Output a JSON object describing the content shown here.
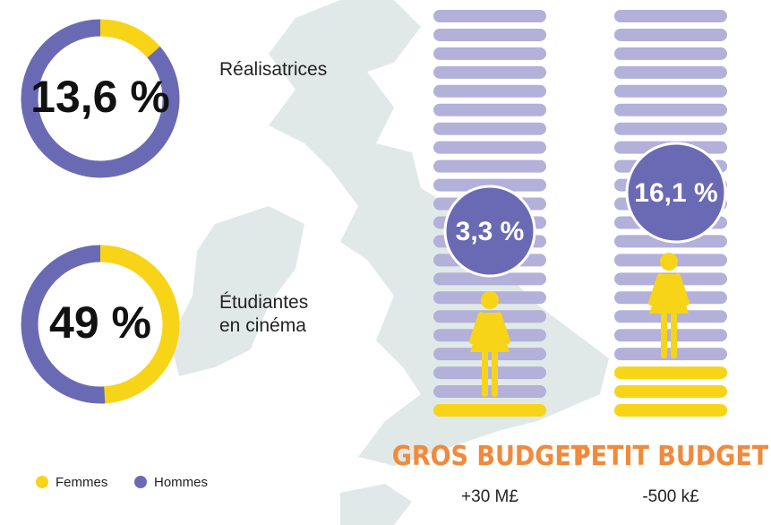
{
  "chart_data": [
    {
      "type": "donut",
      "label": "Réalisatrices",
      "categories": [
        "Femmes",
        "Hommes"
      ],
      "values": [
        13.6,
        86.4
      ],
      "value_label": "13,6 %",
      "colors": [
        "#f7d417",
        "#6a6ab4"
      ]
    },
    {
      "type": "donut",
      "label": "Étudiantes en cinéma",
      "categories": [
        "Femmes",
        "Hommes"
      ],
      "values": [
        49,
        51
      ],
      "value_label": "49 %",
      "colors": [
        "#f7d417",
        "#6a6ab4"
      ]
    },
    {
      "type": "pictogram",
      "title": "GROS BUDGET",
      "subtitle": "+30 M£",
      "value": 3.3,
      "value_label": "3,3 %",
      "rows": 22,
      "highlighted": 1,
      "colors": [
        "#f7d417",
        "#b3b0da"
      ]
    },
    {
      "type": "pictogram",
      "title": "PETIT BUDGET",
      "subtitle": "-500 k£",
      "value": 16.1,
      "value_label": "16,1 %",
      "rows": 22,
      "highlighted": 3,
      "colors": [
        "#f7d417",
        "#b3b0da"
      ]
    }
  ],
  "legend": [
    {
      "name": "Femmes",
      "color": "#f7d417"
    },
    {
      "name": "Hommes",
      "color": "#6a6ab4"
    }
  ]
}
